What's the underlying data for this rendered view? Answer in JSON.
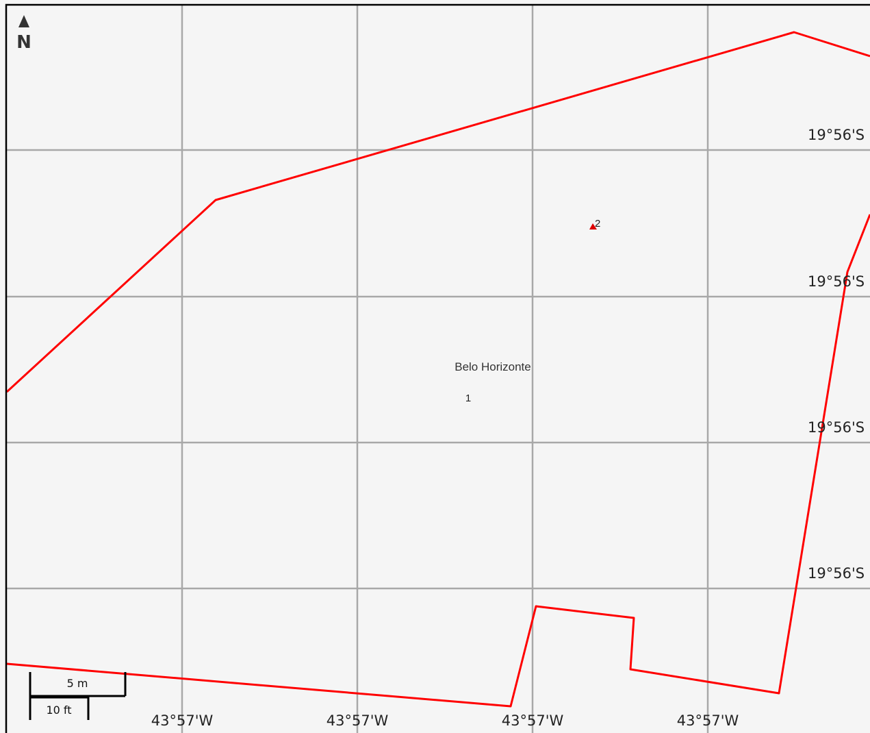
{
  "map": {
    "background": "#f5f5f5",
    "frame_color": "#000000",
    "boundary_color": "#ff0000",
    "grid_color": "#a8a8a8",
    "place_label": "Belo Horizonte",
    "markers": [
      {
        "label": "1",
        "kind": "text-only"
      },
      {
        "label": "2",
        "kind": "red-triangle",
        "color": "#dd0000"
      }
    ],
    "latitude_labels": [
      "19°56'S",
      "19°56'S",
      "19°56'S",
      "19°56'S"
    ],
    "longitude_labels": [
      "43°57'W",
      "43°57'W",
      "43°57'W",
      "43°57'W"
    ],
    "north_arrow": {
      "label": "N",
      "icon": "north-arrow-icon"
    },
    "scale_bar": {
      "metric_label": "5 m",
      "imperial_label": "10 ft"
    }
  }
}
